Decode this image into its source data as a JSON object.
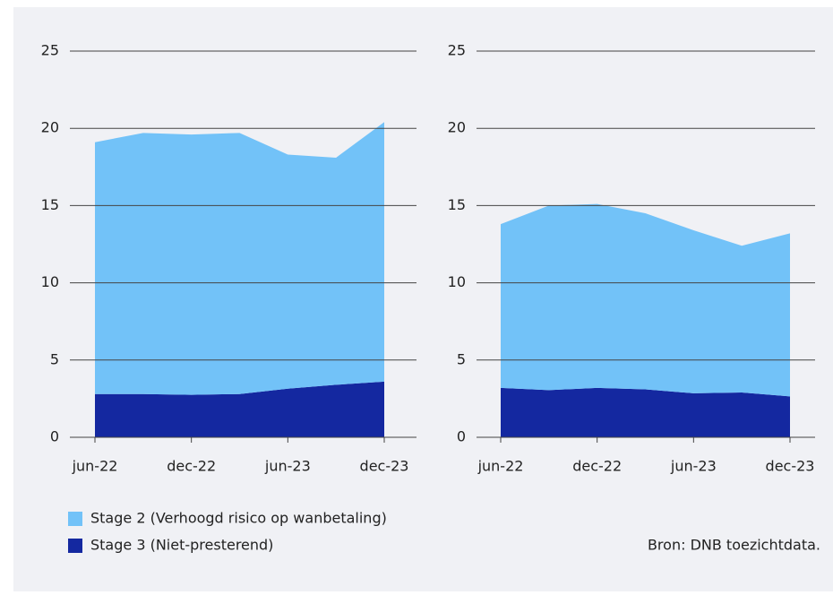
{
  "chart_data": [
    {
      "type": "area",
      "stacked": true,
      "categories": [
        "jun-22",
        null,
        "dec-22",
        null,
        "jun-23",
        null,
        "dec-23"
      ],
      "series": [
        {
          "values": [
            16.3,
            16.9,
            16.85,
            16.9,
            15.15,
            14.7,
            16.8
          ]
        },
        {
          "values": [
            2.8,
            2.8,
            2.75,
            2.8,
            3.15,
            3.4,
            3.6
          ]
        }
      ],
      "ylim": [
        0,
        25
      ],
      "yticks": [
        0,
        5,
        10,
        15,
        20,
        25
      ],
      "grid": true
    },
    {
      "type": "area",
      "stacked": true,
      "categories": [
        "jun-22",
        null,
        "dec-22",
        null,
        "jun-23",
        null,
        "dec-23"
      ],
      "series": [
        {
          "values": [
            10.6,
            11.95,
            11.9,
            11.4,
            10.55,
            9.5,
            10.55
          ]
        },
        {
          "values": [
            3.2,
            3.05,
            3.2,
            3.1,
            2.85,
            2.9,
            2.65
          ]
        }
      ],
      "ylim": [
        0,
        25
      ],
      "yticks": [
        0,
        5,
        10,
        15,
        20,
        25
      ],
      "grid": true
    }
  ],
  "legend": [
    {
      "name": "Stage 2 (Verhoogd risico op wanbetaling)",
      "color": "#72c2f8"
    },
    {
      "name": "Stage 3 (Niet-presterend)",
      "color": "#1428a0"
    }
  ],
  "source": "Bron: DNB toezichtdata."
}
